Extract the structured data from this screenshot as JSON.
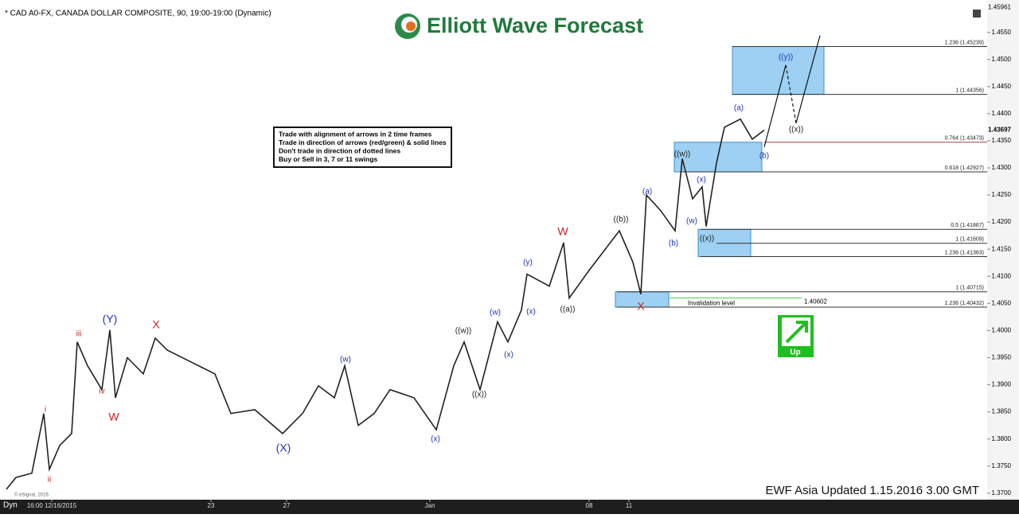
{
  "chart_data": {
    "type": "line",
    "title": "* CAD A0-FX, CANADA DOLLAR COMPOSITE, 90, 19:00-19:00 (Dynamic)",
    "brand": "Elliott Wave Forecast",
    "footer": "EWF Asia Updated 1.15.2016 3.00 GMT",
    "copyright": "© eSignal, 2016",
    "mode": "Dyn",
    "signal": "Up",
    "notes": [
      "Trade with alignment of arrows in 2 time frames",
      "Trade in direction of arrows (red/green) & solid lines",
      "Don't trade in direction of dotted lines",
      "Buy or Sell in 3, 7 or 11 swings"
    ],
    "xlim": [
      0,
      124
    ],
    "xticks": [
      {
        "value": 6.5,
        "label": "16:00 12/16/2015"
      },
      {
        "value": 26.5,
        "label": "23"
      },
      {
        "value": 36,
        "label": "27"
      },
      {
        "value": 54,
        "label": "Jan"
      },
      {
        "value": 74,
        "label": "08"
      },
      {
        "value": 79,
        "label": "11"
      }
    ],
    "ylim": [
      1.3688,
      1.4595
    ],
    "yticks": [
      {
        "value": 1.455,
        "label": "1.4550"
      },
      {
        "value": 1.45,
        "label": "1.4500"
      },
      {
        "value": 1.445,
        "label": "1.4450"
      },
      {
        "value": 1.44,
        "label": "1.4400"
      },
      {
        "value": 1.435,
        "label": "1.4350"
      },
      {
        "value": 1.43,
        "label": "1.4300"
      },
      {
        "value": 1.425,
        "label": "1.4250"
      },
      {
        "value": 1.42,
        "label": "1.4200"
      },
      {
        "value": 1.415,
        "label": "1.4150"
      },
      {
        "value": 1.41,
        "label": "1.4100"
      },
      {
        "value": 1.405,
        "label": "1.4050"
      },
      {
        "value": 1.4,
        "label": "1.4000"
      },
      {
        "value": 1.395,
        "label": "1.3950"
      },
      {
        "value": 1.39,
        "label": "1.3900"
      },
      {
        "value": 1.385,
        "label": "1.3850"
      },
      {
        "value": 1.38,
        "label": "1.3800"
      },
      {
        "value": 1.375,
        "label": "1.3750"
      },
      {
        "value": 1.37,
        "label": "1.3700"
      }
    ],
    "top_price": 1.45961,
    "last_price": 1.43697,
    "series": [
      {
        "name": "CAD A0-FX",
        "color": "#222222",
        "x": [
          0.8,
          2,
          4,
          5.5,
          6.2,
          7.5,
          9,
          9.7,
          11,
          12.8,
          13.8,
          14.5,
          16,
          18,
          19.5,
          21,
          24,
          27,
          29,
          32,
          35.5,
          38,
          40,
          42,
          43.3,
          45,
          47,
          49,
          52,
          54.8,
          57,
          58.3,
          60.3,
          62.5,
          63.8,
          65.5,
          66.2,
          69,
          70.8,
          71.5,
          74,
          77.8,
          79.5,
          80.5,
          81.2,
          83,
          84.8,
          85.7,
          87,
          88.2,
          88.7,
          90,
          91,
          93,
          94.5,
          96
        ],
        "values": [
          1.3707,
          1.3729,
          1.3737,
          1.3847,
          1.3744,
          1.3788,
          1.381,
          1.3979,
          1.3935,
          1.3891,
          1.4001,
          1.3876,
          1.395,
          1.392,
          1.3986,
          1.3964,
          1.3942,
          1.392,
          1.3847,
          1.3854,
          1.381,
          1.3847,
          1.3898,
          1.3876,
          1.3935,
          1.3825,
          1.3847,
          1.3891,
          1.3876,
          1.3817,
          1.3935,
          1.3979,
          1.3891,
          1.4016,
          1.3979,
          1.4038,
          1.4104,
          1.4082,
          1.4162,
          1.406,
          1.4111,
          1.4184,
          1.4126,
          1.4067,
          1.425,
          1.4221,
          1.4184,
          1.4317,
          1.4243,
          1.4265,
          1.4192,
          1.4309,
          1.4375,
          1.439,
          1.4353,
          1.43697
        ]
      }
    ],
    "levels": [
      {
        "value": 1.45239,
        "label": "1.236 (1.45239)",
        "x": 92,
        "color": "#333333"
      },
      {
        "value": 1.44356,
        "label": "1 (1.44356)",
        "x": 92,
        "color": "#333333"
      },
      {
        "value": 1.43473,
        "label": "0.764 (1.43473)",
        "x": 96,
        "color": "#a04040"
      },
      {
        "value": 1.42927,
        "label": "0.618 (1.42927)",
        "x": 85.5,
        "color": "#333333"
      },
      {
        "value": 1.41867,
        "label": "0.5 (1.41867)",
        "x": 88,
        "color": "#333333"
      },
      {
        "value": 1.41609,
        "label": "1 (1.41609)",
        "x": 90,
        "color": "#333333"
      },
      {
        "value": 1.41363,
        "label": "1.236 (1.41363)",
        "x": 88,
        "color": "#333333"
      },
      {
        "value": 1.40715,
        "label": "1 (1.40715)",
        "x": 77.5,
        "color": "#333333"
      },
      {
        "value": 1.40432,
        "label": "1.236 (1.40432)",
        "x": 77.5,
        "color": "#333333"
      }
    ],
    "boxes": [
      {
        "x": [
          92,
          103.5
        ],
        "y": [
          1.44356,
          1.45239
        ]
      },
      {
        "x": [
          84.7,
          95.7
        ],
        "y": [
          1.42927,
          1.43473
        ]
      },
      {
        "x": [
          87.7,
          94.3
        ],
        "y": [
          1.41363,
          1.41867
        ]
      },
      {
        "x": [
          77.3,
          84
        ],
        "y": [
          1.40432,
          1.40715
        ]
      }
    ],
    "invalidation": {
      "value": 1.40602,
      "label": "Invalidation level",
      "x": [
        84,
        100.7
      ]
    },
    "projection": {
      "x": [
        96,
        98.7,
        100,
        103
      ],
      "y": [
        1.43385,
        1.44897,
        1.43826,
        1.4544
      ]
    },
    "annotations": [
      {
        "text": "i",
        "x": 5.7,
        "y": 1.38541,
        "color": "#cc2222"
      },
      {
        "text": "ii",
        "x": 6.2,
        "y": 1.37249,
        "color": "#cc2222"
      },
      {
        "text": "iii",
        "x": 9.9,
        "y": 1.39935,
        "color": "#cc2222"
      },
      {
        "text": "iv",
        "x": 12.8,
        "y": 1.38878,
        "color": "#cc2222"
      },
      {
        "text": "W",
        "x": 14.3,
        "y": 1.38394,
        "color": "#cc2222"
      },
      {
        "text": "(Y)",
        "x": 13.8,
        "y": 1.402,
        "color": "#2233bb"
      },
      {
        "text": "X",
        "x": 19.6,
        "y": 1.40097,
        "color": "#cc2222"
      },
      {
        "text": "(X)",
        "x": 35.6,
        "y": 1.37822,
        "color": "#2233bb"
      },
      {
        "text": "(w)",
        "x": 43.4,
        "y": 1.39466,
        "color": "#2233bb"
      },
      {
        "text": "(x)",
        "x": 54.7,
        "y": 1.37998,
        "color": "#2233bb"
      },
      {
        "text": "((w))",
        "x": 58.2,
        "y": 1.39994,
        "color": "#222222"
      },
      {
        "text": "((x))",
        "x": 60.2,
        "y": 1.3882,
        "color": "#222222"
      },
      {
        "text": "(w)",
        "x": 62.2,
        "y": 1.40332,
        "color": "#2233bb"
      },
      {
        "text": "(x)",
        "x": 63.9,
        "y": 1.39554,
        "color": "#2233bb"
      },
      {
        "text": "(x)",
        "x": 66.7,
        "y": 1.40347,
        "color": "#2233bb"
      },
      {
        "text": "(y)",
        "x": 66.3,
        "y": 1.41257,
        "color": "#2233bb"
      },
      {
        "text": "W",
        "x": 70.7,
        "y": 1.41814,
        "color": "#cc2222"
      },
      {
        "text": "((a))",
        "x": 71.3,
        "y": 1.40391,
        "color": "#222222"
      },
      {
        "text": "((b))",
        "x": 78,
        "y": 1.42049,
        "color": "#222222"
      },
      {
        "text": "(a)",
        "x": 81.3,
        "y": 1.42563,
        "color": "#2233bb"
      },
      {
        "text": "(b)",
        "x": 84.6,
        "y": 1.41609,
        "color": "#2233bb"
      },
      {
        "text": "X",
        "x": 80.5,
        "y": 1.40435,
        "color": "#cc2222"
      },
      {
        "text": "((w))",
        "x": 85.7,
        "y": 1.43253,
        "color": "#222222"
      },
      {
        "text": "(x)",
        "x": 88.1,
        "y": 1.42783,
        "color": "#2233bb"
      },
      {
        "text": "(w)",
        "x": 86.9,
        "y": 1.4202,
        "color": "#2233bb"
      },
      {
        "text": "((x))",
        "x": 88.8,
        "y": 1.41697,
        "color": "#222222"
      },
      {
        "text": "(a)",
        "x": 92.8,
        "y": 1.44105,
        "color": "#2233bb"
      },
      {
        "text": "(b)",
        "x": 96,
        "y": 1.43224,
        "color": "#2233bb"
      },
      {
        "text": "((y))",
        "x": 98.7,
        "y": 1.45044,
        "color": "#2233bb"
      },
      {
        "text": "((x))",
        "x": 100,
        "y": 1.43708,
        "color": "#222222"
      }
    ]
  }
}
